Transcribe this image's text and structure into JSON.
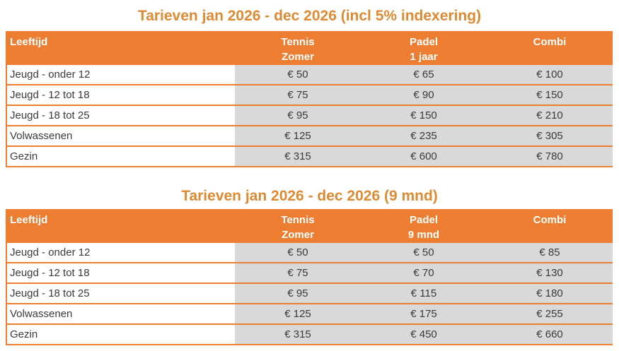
{
  "colors": {
    "accent_orange": "#ED7D31",
    "title_orange": "#DD8A33",
    "value_cell_gray": "#D9D9D9",
    "header_text": "#FFFFFF",
    "body_text": "#3A3A3A"
  },
  "tables": [
    {
      "title": "Tarieven jan 2026 - dec 2026 (incl 5% indexering)",
      "header": {
        "name_col": "Leeftijd",
        "cols": [
          {
            "line1": "Tennis",
            "line2": "Zomer"
          },
          {
            "line1": "Padel",
            "line2": "1 jaar"
          },
          {
            "line1": "Combi",
            "line2": ""
          }
        ]
      },
      "rows": [
        {
          "name": "Jeugd - onder 12",
          "values": [
            "€ 50",
            "€ 65",
            "€ 100"
          ]
        },
        {
          "name": "Jeugd - 12 tot 18",
          "values": [
            "€ 75",
            "€ 90",
            "€ 150"
          ]
        },
        {
          "name": "Jeugd - 18 tot 25",
          "values": [
            "€ 95",
            "€ 150",
            "€ 210"
          ]
        },
        {
          "name": "Volwassenen",
          "values": [
            "€ 125",
            "€ 235",
            "€ 305"
          ]
        },
        {
          "name": "Gezin",
          "values": [
            "€ 315",
            "€ 600",
            "€ 780"
          ]
        }
      ]
    },
    {
      "title": "Tarieven jan 2026 - dec 2026 (9 mnd)",
      "header": {
        "name_col": "Leeftijd",
        "cols": [
          {
            "line1": "Tennis",
            "line2": "Zomer"
          },
          {
            "line1": "Padel",
            "line2": "9 mnd"
          },
          {
            "line1": "Combi",
            "line2": ""
          }
        ]
      },
      "rows": [
        {
          "name": "Jeugd - onder 12",
          "values": [
            "€ 50",
            "€ 50",
            "€ 85"
          ]
        },
        {
          "name": "Jeugd - 12 tot 18",
          "values": [
            "€ 75",
            "€ 70",
            "€ 130"
          ]
        },
        {
          "name": "Jeugd - 18 tot 25",
          "values": [
            "€ 95",
            "€ 115",
            "€ 180"
          ]
        },
        {
          "name": "Volwassenen",
          "values": [
            "€ 125",
            "€ 175",
            "€ 255"
          ]
        },
        {
          "name": "Gezin",
          "values": [
            "€ 315",
            "€ 450",
            "€ 660"
          ]
        }
      ]
    }
  ]
}
